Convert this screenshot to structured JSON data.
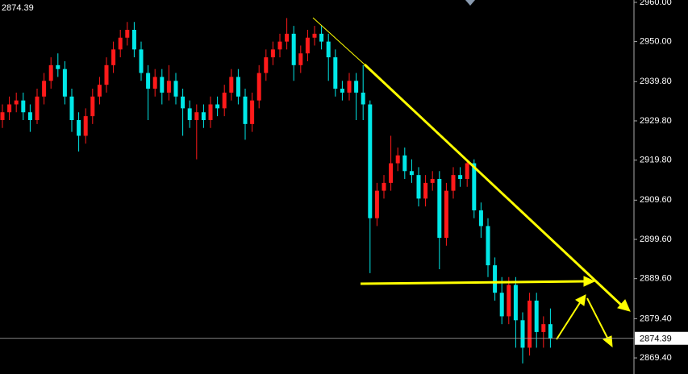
{
  "chart_data": {
    "type": "candlestick",
    "last_price": 2874.39,
    "up_color": "#ff1a1a",
    "down_color": "#00e8e8",
    "ylim": [
      2865.3,
      2960.6
    ],
    "yticks": [
      {
        "value": 2960,
        "label": "2960.00"
      },
      {
        "value": 2950,
        "label": "2950.00"
      },
      {
        "value": 2939.8,
        "label": "2939.80"
      },
      {
        "value": 2929.8,
        "label": "2929.80"
      },
      {
        "value": 2919.8,
        "label": "2919.80"
      },
      {
        "value": 2909.6,
        "label": "2909.60"
      },
      {
        "value": 2899.6,
        "label": "2899.60"
      },
      {
        "value": 2889.6,
        "label": "2889.60"
      },
      {
        "value": 2879.4,
        "label": "2879.40"
      },
      {
        "value": 2869.4,
        "label": "2869.40"
      }
    ],
    "open": [
      2930,
      2932,
      2934,
      2935,
      2932,
      2930,
      2936,
      2940,
      2944,
      2943,
      2936,
      2930,
      2926,
      2931,
      2936,
      2939,
      2944,
      2948,
      2951,
      2953,
      2948,
      2942,
      2938,
      2941,
      2937,
      2940,
      2936,
      2933,
      2930,
      2932,
      2930,
      2934,
      2933,
      2937,
      2941,
      2936,
      2929,
      2935,
      2942,
      2946,
      2948,
      2950,
      2952,
      2944,
      2947,
      2951,
      2952,
      2950,
      2946,
      2938,
      2937,
      2940,
      2937,
      2934,
      2905,
      2912,
      2914,
      2919,
      2921,
      2917,
      2916,
      2910,
      2914,
      2915,
      2900,
      2912,
      2916,
      2915,
      2919,
      2907,
      2903,
      2893,
      2886,
      2880,
      2888,
      2879,
      2872,
      2884,
      2876,
      2878
    ],
    "high": [
      2934,
      2936,
      2937,
      2937,
      2934,
      2938,
      2942,
      2946,
      2947,
      2945,
      2938,
      2932,
      2933,
      2938,
      2941,
      2946,
      2950,
      2953,
      2955,
      2955,
      2950,
      2944,
      2943,
      2943,
      2944,
      2942,
      2938,
      2935,
      2934,
      2934,
      2936,
      2936,
      2939,
      2943,
      2943,
      2938,
      2937,
      2944,
      2948,
      2950,
      2952,
      2956,
      2954,
      2949,
      2953,
      2954,
      2954,
      2952,
      2948,
      2940,
      2942,
      2942,
      2944,
      2935,
      2914,
      2916,
      2926,
      2923,
      2923,
      2920,
      2918,
      2916,
      2917,
      2917,
      2914,
      2918,
      2918,
      2920,
      2920,
      2909,
      2905,
      2895,
      2890,
      2890,
      2890,
      2881,
      2886,
      2886,
      2880,
      2882
    ],
    "low": [
      2928,
      2930,
      2932,
      2930,
      2927,
      2929,
      2934,
      2938,
      2941,
      2934,
      2927,
      2922,
      2924,
      2929,
      2934,
      2937,
      2942,
      2946,
      2949,
      2946,
      2940,
      2930,
      2936,
      2934,
      2935,
      2934,
      2926,
      2928,
      2920,
      2928,
      2928,
      2931,
      2931,
      2935,
      2934,
      2925,
      2927,
      2933,
      2940,
      2944,
      2946,
      2948,
      2940,
      2942,
      2945,
      2949,
      2948,
      2940,
      2936,
      2935,
      2935,
      2930,
      2930,
      2891,
      2903,
      2910,
      2912,
      2917,
      2915,
      2914,
      2908,
      2908,
      2912,
      2892,
      2898,
      2910,
      2913,
      2913,
      2905,
      2900,
      2890,
      2884,
      2878,
      2878,
      2872,
      2868,
      2870,
      2872,
      2872,
      2872
    ],
    "close": [
      2932,
      2934,
      2935,
      2932,
      2930,
      2936,
      2940,
      2944,
      2943,
      2936,
      2930,
      2926,
      2931,
      2936,
      2939,
      2944,
      2948,
      2951,
      2953,
      2948,
      2942,
      2938,
      2941,
      2937,
      2940,
      2936,
      2933,
      2930,
      2932,
      2930,
      2934,
      2933,
      2937,
      2941,
      2936,
      2929,
      2935,
      2942,
      2946,
      2948,
      2950,
      2952,
      2944,
      2947,
      2951,
      2952,
      2950,
      2946,
      2938,
      2937,
      2940,
      2937,
      2934,
      2905,
      2912,
      2914,
      2919,
      2921,
      2917,
      2916,
      2910,
      2914,
      2915,
      2900,
      2912,
      2916,
      2915,
      2919,
      2907,
      2903,
      2893,
      2886,
      2880,
      2888,
      2879,
      2872,
      2884,
      2876,
      2878,
      2874.39
    ]
  }
}
